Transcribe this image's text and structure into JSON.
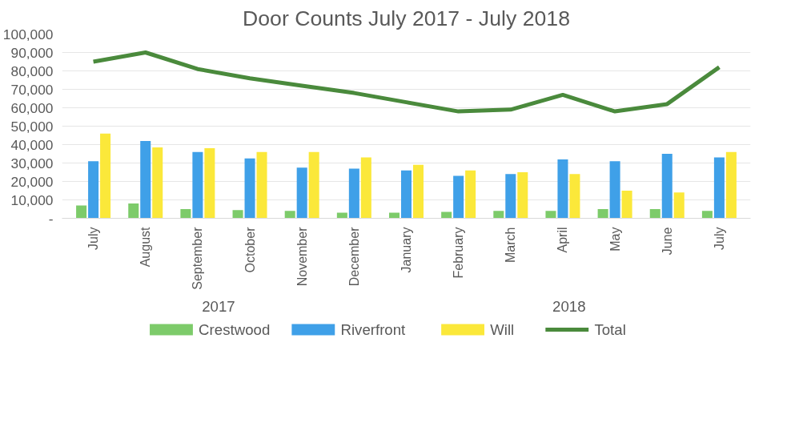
{
  "chart_data": {
    "type": "bar",
    "title": "Door Counts July 2017 - July 2018",
    "categories": [
      "July",
      "August",
      "September",
      "October",
      "November",
      "December",
      "January",
      "February",
      "March",
      "April",
      "May",
      "June",
      "July"
    ],
    "series": [
      {
        "name": "Crestwood",
        "color": "#7dcb6a",
        "values": [
          7000,
          8000,
          5000,
          4500,
          4000,
          3000,
          3000,
          3500,
          4000,
          4000,
          5000,
          5000,
          4000
        ]
      },
      {
        "name": "Riverfront",
        "color": "#3fa0e8",
        "values": [
          31000,
          42000,
          36000,
          32500,
          27500,
          27000,
          26000,
          23000,
          24000,
          32000,
          31000,
          35000,
          33000
        ]
      },
      {
        "name": "Will",
        "color": "#fbe83a",
        "values": [
          46000,
          38500,
          38000,
          36000,
          36000,
          33000,
          29000,
          26000,
          25000,
          24000,
          15000,
          14000,
          36000
        ]
      },
      {
        "name": "Total",
        "type": "line",
        "color": "#4a8a3c",
        "values": [
          85000,
          90000,
          81000,
          76000,
          72000,
          68000,
          63000,
          58000,
          59000,
          67000,
          58000,
          62000,
          82000
        ]
      }
    ],
    "ylim": [
      0,
      100000
    ],
    "yticks": [
      {
        "value": 0,
        "label": "-"
      },
      {
        "value": 10000,
        "label": "10,000"
      },
      {
        "value": 20000,
        "label": "20,000"
      },
      {
        "value": 30000,
        "label": "30,000"
      },
      {
        "value": 40000,
        "label": "40,000"
      },
      {
        "value": 50000,
        "label": "50,000"
      },
      {
        "value": 60000,
        "label": "60,000"
      },
      {
        "value": 70000,
        "label": "70,000"
      },
      {
        "value": 80000,
        "label": "80,000"
      },
      {
        "value": 90000,
        "label": "90,000"
      },
      {
        "value": 100000,
        "label": "100,000"
      }
    ],
    "annotations": [
      "2017",
      "2018"
    ],
    "grid": "y",
    "legend": "bottom"
  }
}
